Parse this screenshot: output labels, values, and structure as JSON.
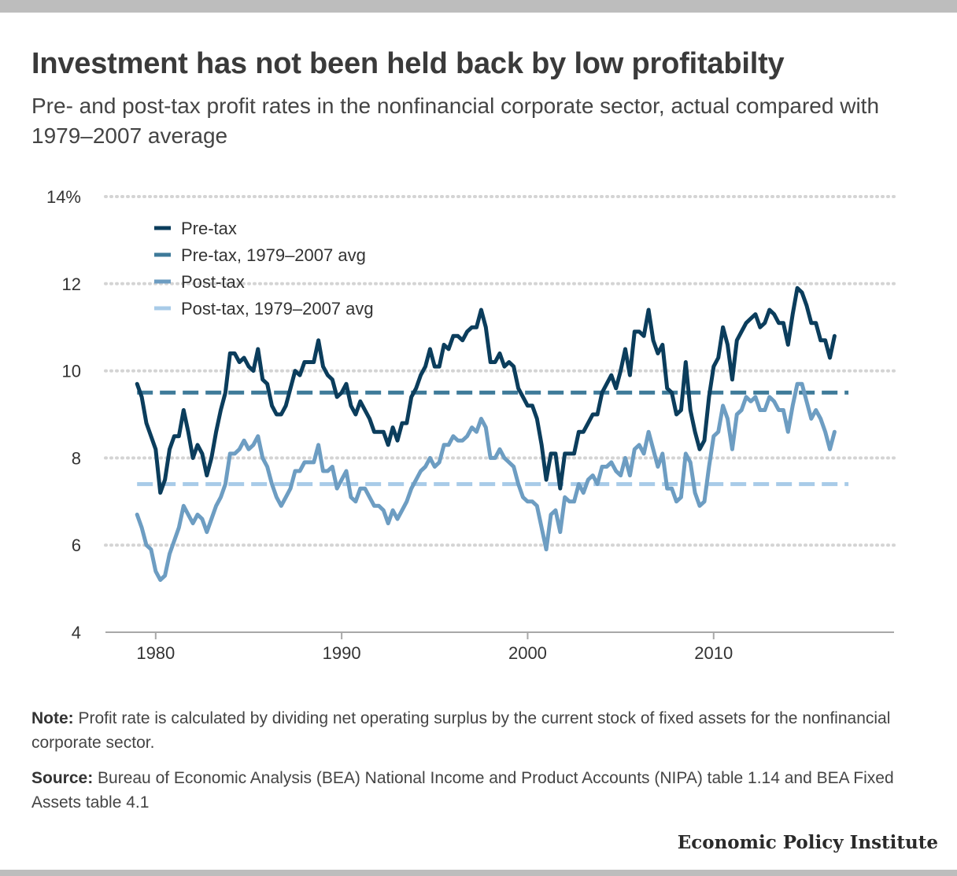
{
  "header": {
    "title": "Investment has not been held back by low profitabilty",
    "subtitle": "Pre- and post-tax profit rates in the nonfinancial corporate sector, actual compared with 1979–2007 average"
  },
  "footer": {
    "note_label": "Note:",
    "note_text": " Profit rate is calculated by dividing net operating surplus by the current stock of fixed assets for the nonfinancial corporate sector.",
    "source_label": "Source:",
    "source_text": "  Bureau of Economic Analysis (BEA) National Income and Product Accounts (NIPA) table 1.14 and BEA Fixed Assets table 4.1",
    "brand": "Economic Policy Institute"
  },
  "chart_data": {
    "type": "line",
    "title": "Investment has not been held back by low profitabilty",
    "subtitle": "Pre- and post-tax profit rates in the nonfinancial corporate sector, actual compared with 1979–2007 average",
    "xlabel": "",
    "ylabel": "",
    "xlim": [
      1977.3,
      2019.7
    ],
    "ylim": [
      4,
      14
    ],
    "x_ticks": [
      1980,
      1990,
      2000,
      2010
    ],
    "y_ticks": [
      4,
      6,
      8,
      10,
      12,
      14
    ],
    "y_tick_labels": [
      "4",
      "6",
      "8",
      "10",
      "12",
      "14%"
    ],
    "grid": "horizontal dotted",
    "legend_position": "top-left",
    "x_start": 1979.0,
    "x_step": 0.25,
    "series": [
      {
        "name": "Pre-tax",
        "color": "#0b3d5c",
        "style": "solid",
        "values": [
          9.7,
          9.4,
          8.8,
          8.5,
          8.2,
          7.2,
          7.5,
          8.2,
          8.5,
          8.5,
          9.1,
          8.6,
          8.0,
          8.3,
          8.1,
          7.6,
          8.0,
          8.6,
          9.1,
          9.5,
          10.4,
          10.4,
          10.2,
          10.3,
          10.1,
          10.0,
          10.5,
          9.8,
          9.7,
          9.2,
          9.0,
          9.0,
          9.2,
          9.6,
          10.0,
          9.9,
          10.2,
          10.2,
          10.2,
          10.7,
          10.1,
          9.9,
          9.8,
          9.4,
          9.5,
          9.7,
          9.2,
          9.0,
          9.3,
          9.1,
          8.9,
          8.6,
          8.6,
          8.6,
          8.3,
          8.7,
          8.4,
          8.8,
          8.8,
          9.4,
          9.6,
          9.9,
          10.1,
          10.5,
          10.1,
          10.1,
          10.6,
          10.5,
          10.8,
          10.8,
          10.7,
          10.9,
          11.0,
          11.0,
          11.4,
          11.0,
          10.2,
          10.2,
          10.4,
          10.1,
          10.2,
          10.1,
          9.6,
          9.4,
          9.2,
          9.2,
          8.9,
          8.3,
          7.5,
          8.1,
          8.1,
          7.3,
          8.1,
          8.1,
          8.1,
          8.6,
          8.6,
          8.8,
          9.0,
          9.0,
          9.5,
          9.7,
          9.9,
          9.6,
          10.0,
          10.5,
          9.9,
          10.9,
          10.9,
          10.8,
          11.4,
          10.7,
          10.4,
          10.6,
          9.6,
          9.5,
          9.0,
          9.1,
          10.2,
          9.1,
          8.6,
          8.2,
          8.4,
          9.4,
          10.1,
          10.3,
          11.0,
          10.6,
          9.8,
          10.7,
          10.9,
          11.1,
          11.2,
          11.3,
          11.0,
          11.1,
          11.4,
          11.3,
          11.1,
          11.1,
          10.6,
          11.3,
          11.9,
          11.8,
          11.5,
          11.1,
          11.1,
          10.7,
          10.7,
          10.3,
          10.8
        ]
      },
      {
        "name": "Pre-tax, 1979–2007 avg",
        "color": "#3e7a99",
        "style": "dashed",
        "x_range": [
          1979.0,
          2017.25
        ],
        "value": 9.5
      },
      {
        "name": "Post-tax",
        "color": "#6d9dc2",
        "style": "solid",
        "values": [
          6.7,
          6.4,
          6.0,
          5.9,
          5.4,
          5.2,
          5.3,
          5.8,
          6.1,
          6.4,
          6.9,
          6.7,
          6.5,
          6.7,
          6.6,
          6.3,
          6.6,
          6.9,
          7.1,
          7.4,
          8.1,
          8.1,
          8.2,
          8.4,
          8.2,
          8.3,
          8.5,
          8.0,
          7.8,
          7.4,
          7.1,
          6.9,
          7.1,
          7.3,
          7.7,
          7.7,
          7.9,
          7.9,
          7.9,
          8.3,
          7.7,
          7.7,
          7.8,
          7.3,
          7.5,
          7.7,
          7.1,
          7.0,
          7.3,
          7.3,
          7.1,
          6.9,
          6.9,
          6.8,
          6.5,
          6.8,
          6.6,
          6.8,
          7.0,
          7.3,
          7.5,
          7.7,
          7.8,
          8.0,
          7.8,
          7.9,
          8.3,
          8.3,
          8.5,
          8.4,
          8.4,
          8.5,
          8.7,
          8.6,
          8.9,
          8.7,
          8.0,
          8.0,
          8.2,
          8.0,
          7.9,
          7.8,
          7.4,
          7.1,
          7.0,
          7.0,
          6.9,
          6.4,
          5.9,
          6.7,
          6.8,
          6.3,
          7.1,
          7.0,
          7.0,
          7.4,
          7.2,
          7.5,
          7.6,
          7.4,
          7.8,
          7.8,
          7.9,
          7.7,
          7.6,
          8.0,
          7.6,
          8.2,
          8.3,
          8.1,
          8.6,
          8.2,
          7.8,
          8.1,
          7.3,
          7.3,
          7.0,
          7.1,
          8.1,
          7.9,
          7.2,
          6.9,
          7.0,
          7.8,
          8.5,
          8.6,
          9.2,
          8.9,
          8.2,
          9.0,
          9.1,
          9.4,
          9.3,
          9.4,
          9.1,
          9.1,
          9.4,
          9.3,
          9.1,
          9.1,
          8.6,
          9.2,
          9.7,
          9.7,
          9.3,
          8.9,
          9.1,
          8.9,
          8.6,
          8.2,
          8.6
        ]
      },
      {
        "name": "Post-tax, 1979–2007 avg",
        "color": "#a8cbe8",
        "style": "dashed",
        "x_range": [
          1979.0,
          2017.25
        ],
        "value": 7.4
      }
    ]
  }
}
